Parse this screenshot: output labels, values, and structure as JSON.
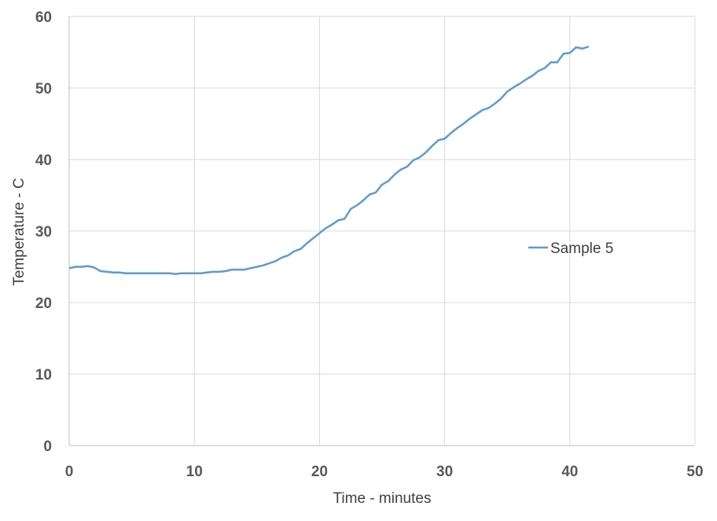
{
  "chart_data": {
    "type": "scatter",
    "title": "",
    "xlabel": "Time - minutes",
    "ylabel": "Temperature - C",
    "xlim": [
      0,
      50
    ],
    "ylim": [
      0,
      60
    ],
    "xticks": [
      0,
      10,
      20,
      30,
      40,
      50
    ],
    "yticks": [
      0,
      10,
      20,
      30,
      40,
      50,
      60
    ],
    "grid": true,
    "legend_position": "right",
    "series": [
      {
        "name": "Sample 5",
        "color": "#5b9bd5",
        "points": [
          [
            0,
            24.8
          ],
          [
            0.5,
            25.0
          ],
          [
            1,
            25.0
          ],
          [
            1.5,
            25.1
          ],
          [
            2,
            24.9
          ],
          [
            2.5,
            24.4
          ],
          [
            3,
            24.3
          ],
          [
            3.5,
            24.2
          ],
          [
            4,
            24.2
          ],
          [
            4.5,
            24.1
          ],
          [
            5,
            24.1
          ],
          [
            5.5,
            24.1
          ],
          [
            6,
            24.1
          ],
          [
            6.5,
            24.1
          ],
          [
            7,
            24.1
          ],
          [
            7.5,
            24.1
          ],
          [
            8,
            24.1
          ],
          [
            8.5,
            24.0
          ],
          [
            9,
            24.1
          ],
          [
            9.5,
            24.1
          ],
          [
            10,
            24.1
          ],
          [
            10.5,
            24.1
          ],
          [
            11,
            24.2
          ],
          [
            11.5,
            24.3
          ],
          [
            12,
            24.3
          ],
          [
            12.5,
            24.4
          ],
          [
            13,
            24.6
          ],
          [
            13.5,
            24.6
          ],
          [
            14,
            24.6
          ],
          [
            14.5,
            24.8
          ],
          [
            15,
            25.0
          ],
          [
            15.5,
            25.2
          ],
          [
            16,
            25.5
          ],
          [
            16.5,
            25.8
          ],
          [
            17,
            26.3
          ],
          [
            17.5,
            26.6
          ],
          [
            18,
            27.2
          ],
          [
            18.5,
            27.5
          ],
          [
            19,
            28.3
          ],
          [
            19.5,
            29.0
          ],
          [
            20,
            29.7
          ],
          [
            20.5,
            30.4
          ],
          [
            21,
            30.9
          ],
          [
            21.5,
            31.5
          ],
          [
            22,
            31.7
          ],
          [
            22.5,
            33.1
          ],
          [
            23,
            33.6
          ],
          [
            23.5,
            34.3
          ],
          [
            24,
            35.1
          ],
          [
            24.5,
            35.4
          ],
          [
            25,
            36.5
          ],
          [
            25.5,
            37.0
          ],
          [
            26,
            37.9
          ],
          [
            26.5,
            38.6
          ],
          [
            27,
            39.0
          ],
          [
            27.5,
            39.9
          ],
          [
            28,
            40.3
          ],
          [
            28.5,
            41.0
          ],
          [
            29,
            41.9
          ],
          [
            29.5,
            42.7
          ],
          [
            30,
            42.9
          ],
          [
            30.5,
            43.7
          ],
          [
            31,
            44.4
          ],
          [
            31.5,
            45.0
          ],
          [
            32,
            45.7
          ],
          [
            32.5,
            46.3
          ],
          [
            33,
            46.9
          ],
          [
            33.5,
            47.2
          ],
          [
            34,
            47.8
          ],
          [
            34.5,
            48.5
          ],
          [
            35,
            49.5
          ],
          [
            35.5,
            50.1
          ],
          [
            36,
            50.6
          ],
          [
            36.5,
            51.2
          ],
          [
            37,
            51.7
          ],
          [
            37.5,
            52.4
          ],
          [
            38,
            52.8
          ],
          [
            38.5,
            53.6
          ],
          [
            39,
            53.6
          ],
          [
            39.5,
            54.8
          ],
          [
            40,
            54.9
          ],
          [
            40.5,
            55.7
          ],
          [
            41,
            55.5
          ],
          [
            41.5,
            55.8
          ]
        ]
      }
    ]
  }
}
